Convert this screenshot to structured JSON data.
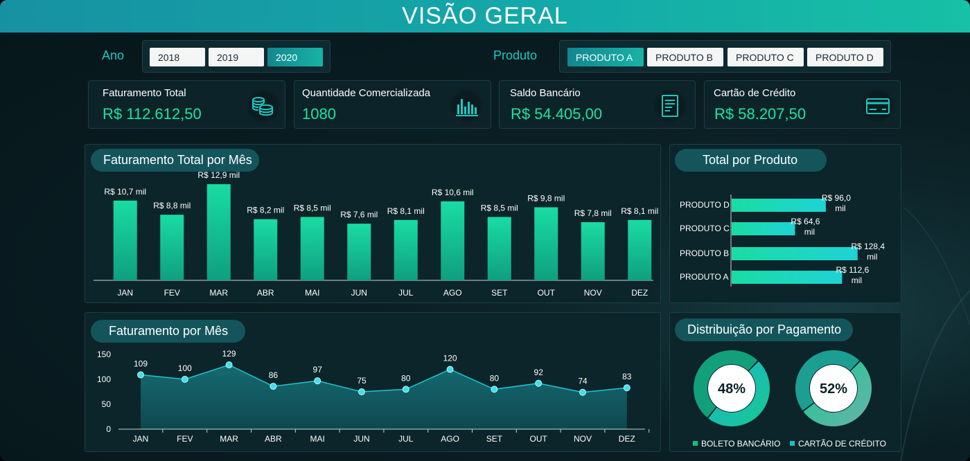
{
  "header": {
    "title": "VISÃO GERAL"
  },
  "filters": {
    "year_label": "Ano",
    "years": [
      "2018",
      "2019",
      "2020"
    ],
    "active_year": "2020",
    "product_label": "Produto",
    "products": [
      "PRODUTO A",
      "PRODUTO B",
      "PRODUTO C",
      "PRODUTO D"
    ],
    "active_product": "PRODUTO A"
  },
  "kpis": [
    {
      "title": "Faturamento Total",
      "value": "R$ 112.612,50",
      "icon": "coins-icon"
    },
    {
      "title": "Quantidade Comercializada",
      "value": "1080",
      "icon": "bar-chart-icon"
    },
    {
      "title": "Saldo Bancário",
      "value": "R$ 54.405,00",
      "icon": "document-icon"
    },
    {
      "title": "Cartão de Crédito",
      "value": "R$ 58.207,50",
      "icon": "credit-card-icon"
    }
  ],
  "colors": {
    "accent": "#1ee2a4",
    "teal": "#1fc7bf",
    "panel": "#0c252a"
  },
  "chart_data": [
    {
      "type": "bar",
      "title": "Faturamento Total por Mês",
      "categories": [
        "JAN",
        "FEV",
        "MAR",
        "ABR",
        "MAI",
        "JUN",
        "JUL",
        "AGO",
        "SET",
        "OUT",
        "NOV",
        "DEZ"
      ],
      "values": [
        10.7,
        8.8,
        12.9,
        8.2,
        8.5,
        7.6,
        8.1,
        10.6,
        8.5,
        9.8,
        7.8,
        8.1
      ],
      "labels": [
        "R$ 10,7 mil",
        "R$ 8,8 mil",
        "R$ 12,9 mil",
        "R$ 8,2 mil",
        "R$ 8,5 mil",
        "R$ 7,6 mil",
        "R$ 8,1 mil",
        "R$ 10,6 mil",
        "R$ 8,5 mil",
        "R$ 9,8 mil",
        "R$ 7,8 mil",
        "R$ 8,1 mil"
      ],
      "ylim": [
        0,
        13
      ]
    },
    {
      "type": "bar",
      "orientation": "horizontal",
      "title": "Total por Produto",
      "categories": [
        "PRODUTO D",
        "PRODUTO C",
        "PRODUTO B",
        "PRODUTO A"
      ],
      "values": [
        96.0,
        64.6,
        128.4,
        112.6
      ],
      "labels": [
        [
          "R$ 96,0",
          "mil"
        ],
        [
          "R$ 64,6",
          "mil"
        ],
        [
          "R$ 128,4",
          "mil"
        ],
        [
          "R$ 112,6",
          "mil"
        ]
      ],
      "xlim": [
        0,
        130
      ]
    },
    {
      "type": "area",
      "title": "Faturamento por Mês",
      "categories": [
        "JAN",
        "FEV",
        "MAR",
        "ABR",
        "MAI",
        "JUN",
        "JUL",
        "AGO",
        "SET",
        "OUT",
        "NOV",
        "DEZ"
      ],
      "values": [
        109,
        100,
        129,
        86,
        97,
        75,
        80,
        120,
        80,
        92,
        74,
        83
      ],
      "yticks": [
        "0",
        "50",
        "100",
        "150"
      ],
      "ylim": [
        0,
        150
      ]
    },
    {
      "type": "pie",
      "title": "Distribuição por Pagamento",
      "series": [
        {
          "name": "BOLETO BANCÁRIO",
          "value": 48,
          "label": "48%"
        },
        {
          "name": "CARTÃO DE CRÉDITO",
          "value": 52,
          "label": "52%"
        }
      ]
    }
  ]
}
